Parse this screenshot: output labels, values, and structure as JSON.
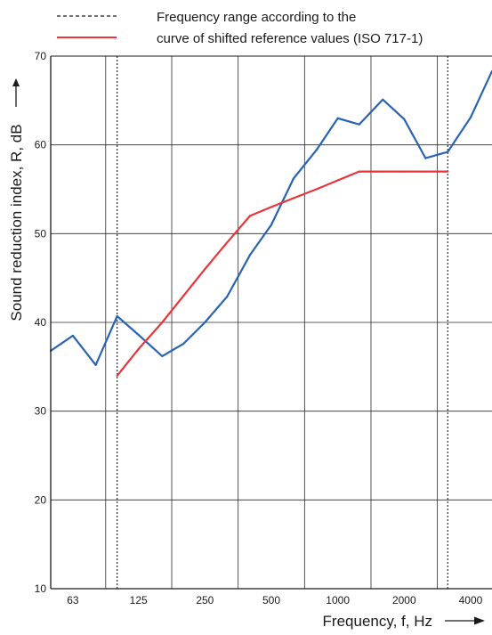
{
  "chart_data": {
    "type": "line",
    "x_scale": "log",
    "xlabel": "Frequency, f, Hz",
    "ylabel": "Sound reduction index, R, dB",
    "ylim": [
      10,
      70
    ],
    "y_ticks": [
      10,
      20,
      30,
      40,
      50,
      60,
      70
    ],
    "x_tick_labels": [
      "63",
      "125",
      "250",
      "500",
      "1000",
      "2000",
      "4000"
    ],
    "x_tick_values": [
      63,
      125,
      250,
      500,
      1000,
      2000,
      4000
    ],
    "xlim": [
      50,
      5000
    ],
    "grid": true,
    "legend_position": "top",
    "legend": [
      {
        "style": "dashed",
        "color": "#1a1a1a",
        "text_lines": [
          "Frequency range according to the"
        ]
      },
      {
        "style": "solid",
        "color": "#e8343a",
        "text_lines": [
          "curve of shifted reference values (ISO 717-1)"
        ]
      }
    ],
    "frequency_range": [
      100,
      3150
    ],
    "series": [
      {
        "color": "#2a63b4",
        "x": [
          50,
          63,
          80,
          100,
          125,
          160,
          200,
          250,
          315,
          400,
          500,
          630,
          800,
          1000,
          1250,
          1600,
          2000,
          2500,
          3150,
          4000,
          5000
        ],
        "values": [
          36.8,
          38.5,
          35.2,
          40.7,
          38.6,
          36.2,
          37.6,
          40.0,
          42.9,
          47.6,
          51.0,
          56.2,
          59.4,
          63.0,
          62.3,
          65.1,
          62.9,
          58.5,
          59.2,
          63.1,
          68.3
        ]
      },
      {
        "color": "#e8343a",
        "x": [
          100,
          125,
          160,
          200,
          250,
          315,
          400,
          500,
          630,
          800,
          1000,
          1250,
          1600,
          2000,
          2500,
          3150
        ],
        "values": [
          34,
          37,
          40,
          43,
          46,
          49,
          52,
          53,
          54,
          55,
          56,
          57,
          57,
          57,
          57,
          57
        ]
      }
    ]
  }
}
